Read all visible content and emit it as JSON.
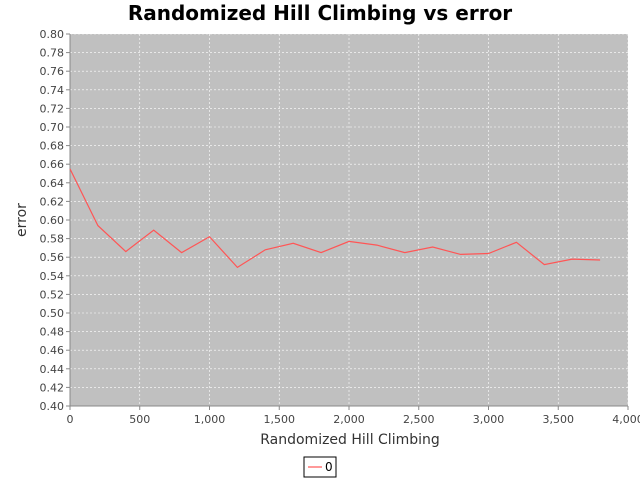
{
  "chart_data": {
    "type": "line",
    "title": "Randomized Hill Climbing vs error",
    "xlabel": "Randomized Hill Climbing",
    "ylabel": "error",
    "xlim": [
      0,
      4000
    ],
    "ylim": [
      0.4,
      0.8
    ],
    "x_ticks": [
      0,
      500,
      1000,
      1500,
      2000,
      2500,
      3000,
      3500,
      4000
    ],
    "x_tick_labels": [
      "0",
      "500",
      "1,000",
      "1,500",
      "2,000",
      "2,500",
      "3,000",
      "3,500",
      "4,000"
    ],
    "y_ticks": [
      0.4,
      0.42,
      0.44,
      0.46,
      0.48,
      0.5,
      0.52,
      0.54,
      0.56,
      0.58,
      0.6,
      0.62,
      0.64,
      0.66,
      0.68,
      0.7,
      0.72,
      0.74,
      0.76,
      0.78,
      0.8
    ],
    "y_tick_labels": [
      "0.40",
      "0.42",
      "0.44",
      "0.46",
      "0.48",
      "0.50",
      "0.52",
      "0.54",
      "0.56",
      "0.58",
      "0.60",
      "0.62",
      "0.64",
      "0.66",
      "0.68",
      "0.70",
      "0.72",
      "0.74",
      "0.76",
      "0.78",
      "0.80"
    ],
    "grid": true,
    "legend_position": "bottom-center",
    "plot_background": "#c0c0c0",
    "series": [
      {
        "name": "0",
        "color": "#ff5555",
        "x": [
          0,
          200,
          400,
          600,
          800,
          1000,
          1200,
          1400,
          1600,
          1800,
          2000,
          2200,
          2400,
          2600,
          2800,
          3000,
          3200,
          3400,
          3600,
          3800
        ],
        "y": [
          0.655,
          0.594,
          0.566,
          0.589,
          0.565,
          0.582,
          0.549,
          0.568,
          0.575,
          0.565,
          0.577,
          0.573,
          0.565,
          0.571,
          0.563,
          0.564,
          0.576,
          0.552,
          0.558,
          0.557
        ]
      }
    ]
  }
}
